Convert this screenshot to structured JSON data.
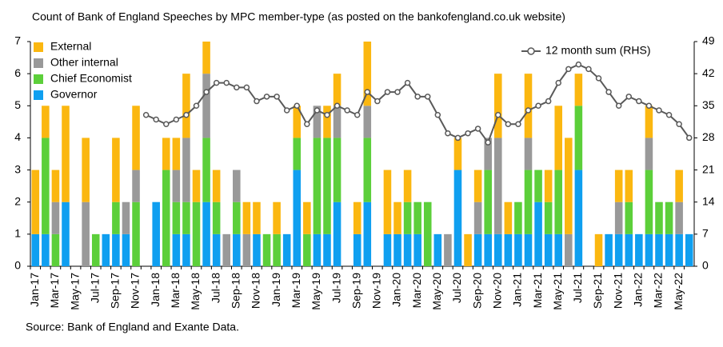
{
  "chart_data": {
    "type": "bar",
    "stacked": true,
    "title": "Count of Bank of England Speeches by MPC member-type (as posted on the bankofengland.co.uk website)",
    "source": "Source: Bank of England and Exante Data.",
    "categories": [
      "Jan-17",
      null,
      "Mar-17",
      null,
      "May-17",
      null,
      "Jul-17",
      null,
      "Sep-17",
      null,
      "Nov-17",
      null,
      "Jan-18",
      null,
      "Mar-18",
      null,
      "May-18",
      null,
      "Jul-18",
      null,
      "Sep-18",
      null,
      "Nov-18",
      null,
      "Jan-19",
      null,
      "Mar-19",
      null,
      "May-19",
      null,
      "Jul-19",
      null,
      "Sep-19",
      null,
      "Nov-19",
      null,
      "Jan-20",
      null,
      "Mar-20",
      null,
      "May-20",
      null,
      "Jul-20",
      null,
      "Sep-20",
      null,
      "Nov-20",
      null,
      "Jan-21",
      null,
      "Mar-21",
      null,
      "May-21",
      null,
      "Jul-21",
      null,
      "Sep-21",
      null,
      "Nov-21",
      null,
      "Jan-22",
      null,
      "Mar-22",
      null,
      "May-22",
      null
    ],
    "series": [
      {
        "name": "Governor",
        "color": "#0f9ff0",
        "values": [
          1,
          1,
          0,
          2,
          0,
          0,
          0,
          1,
          1,
          1,
          0,
          0,
          2,
          0,
          1,
          1,
          0,
          2,
          1,
          0,
          1,
          0,
          1,
          0,
          0,
          1,
          3,
          0,
          1,
          1,
          2,
          0,
          1,
          2,
          0,
          1,
          1,
          1,
          1,
          0,
          1,
          0,
          3,
          0,
          1,
          1,
          1,
          1,
          1,
          1,
          2,
          1,
          1,
          0,
          3,
          0,
          0,
          1,
          1,
          1,
          1,
          1,
          1,
          1,
          1,
          1
        ]
      },
      {
        "name": "Chief Economist",
        "color": "#5ccf3a",
        "values": [
          0,
          3,
          1,
          0,
          0,
          0,
          1,
          0,
          1,
          0,
          2,
          0,
          0,
          3,
          1,
          1,
          2,
          2,
          1,
          0,
          1,
          0,
          0,
          1,
          1,
          0,
          1,
          1,
          3,
          3,
          2,
          0,
          0,
          2,
          0,
          0,
          0,
          1,
          1,
          2,
          0,
          0,
          0,
          0,
          0,
          2,
          0,
          0,
          1,
          2,
          1,
          1,
          2,
          0,
          2,
          0,
          0,
          0,
          0,
          1,
          0,
          2,
          1,
          1,
          0,
          0
        ]
      },
      {
        "name": "Other internal",
        "color": "#999999",
        "values": [
          0,
          0,
          1,
          0,
          0,
          2,
          0,
          0,
          0,
          1,
          1,
          0,
          0,
          0,
          1,
          2,
          0,
          2,
          0,
          1,
          1,
          1,
          0,
          0,
          0,
          0,
          0,
          0,
          1,
          0,
          1,
          0,
          0,
          1,
          0,
          0,
          0,
          0,
          0,
          0,
          0,
          1,
          0,
          0,
          1,
          1,
          3,
          0,
          0,
          1,
          0,
          0,
          0,
          1,
          0,
          0,
          0,
          0,
          1,
          0,
          0,
          1,
          0,
          0,
          1,
          0
        ]
      },
      {
        "name": "External",
        "color": "#fbb710",
        "values": [
          2,
          1,
          1,
          3,
          0,
          2,
          0,
          0,
          2,
          0,
          2,
          0,
          0,
          1,
          1,
          2,
          1,
          1,
          1,
          0,
          0,
          1,
          1,
          0,
          1,
          0,
          1,
          1,
          0,
          1,
          1,
          0,
          1,
          2,
          0,
          2,
          1,
          1,
          0,
          0,
          0,
          0,
          1,
          1,
          1,
          0,
          2,
          1,
          0,
          2,
          0,
          1,
          2,
          3,
          1,
          0,
          1,
          0,
          1,
          1,
          0,
          1,
          0,
          0,
          1,
          0
        ]
      },
      {
        "name": "12 month sum (RHS)",
        "type": "line",
        "axis": "y2",
        "color": "#595959",
        "values": [
          null,
          null,
          null,
          null,
          null,
          null,
          null,
          null,
          null,
          null,
          null,
          33,
          32,
          31,
          32,
          33,
          35,
          38,
          40,
          40,
          39,
          39,
          36,
          37,
          37,
          34,
          35,
          31,
          34,
          33,
          35,
          34,
          33,
          38,
          36,
          38,
          38,
          40,
          37,
          37,
          33,
          29,
          28,
          29,
          30,
          27,
          33,
          31,
          31,
          34,
          35,
          36,
          40,
          43,
          44,
          43,
          41,
          38,
          35,
          37,
          36,
          35,
          34,
          33,
          31,
          28
        ]
      }
    ],
    "ylim": [
      0,
      7
    ],
    "yticks": [
      0,
      1,
      2,
      3,
      4,
      5,
      6,
      7
    ],
    "y2lim": [
      0,
      49
    ],
    "y2ticks": [
      0,
      7,
      14,
      21,
      28,
      35,
      42,
      49
    ],
    "grid": false
  }
}
